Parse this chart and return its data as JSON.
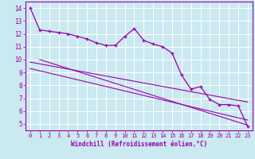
{
  "xlabel": "Windchill (Refroidissement éolien,°C)",
  "xlim": [
    -0.5,
    23.5
  ],
  "ylim": [
    4.5,
    14.5
  ],
  "yticks": [
    5,
    6,
    7,
    8,
    9,
    10,
    11,
    12,
    13,
    14
  ],
  "xticks": [
    0,
    1,
    2,
    3,
    4,
    5,
    6,
    7,
    8,
    9,
    10,
    11,
    12,
    13,
    14,
    15,
    16,
    17,
    18,
    19,
    20,
    21,
    22,
    23
  ],
  "bg_color": "#cbe9f0",
  "line_color": "#9900aa",
  "grid_color": "#ffffff",
  "line1_x": [
    0,
    1,
    2,
    3,
    4,
    5,
    6,
    7,
    8,
    9,
    10,
    11,
    12,
    13,
    14,
    15,
    16,
    17,
    18,
    19,
    20,
    21,
    22,
    23
  ],
  "line1_y": [
    14.0,
    12.3,
    12.2,
    12.1,
    12.0,
    11.8,
    11.6,
    11.3,
    11.1,
    11.1,
    11.8,
    12.4,
    11.5,
    11.2,
    11.0,
    10.5,
    8.8,
    7.7,
    7.9,
    6.9,
    6.5,
    6.5,
    6.4,
    4.8
  ],
  "trend1_x": [
    0,
    23
  ],
  "trend1_y": [
    9.8,
    6.7
  ],
  "trend2_x": [
    0,
    23
  ],
  "trend2_y": [
    9.3,
    5.3
  ],
  "trend3_x": [
    1,
    23
  ],
  "trend3_y": [
    10.0,
    4.9
  ]
}
